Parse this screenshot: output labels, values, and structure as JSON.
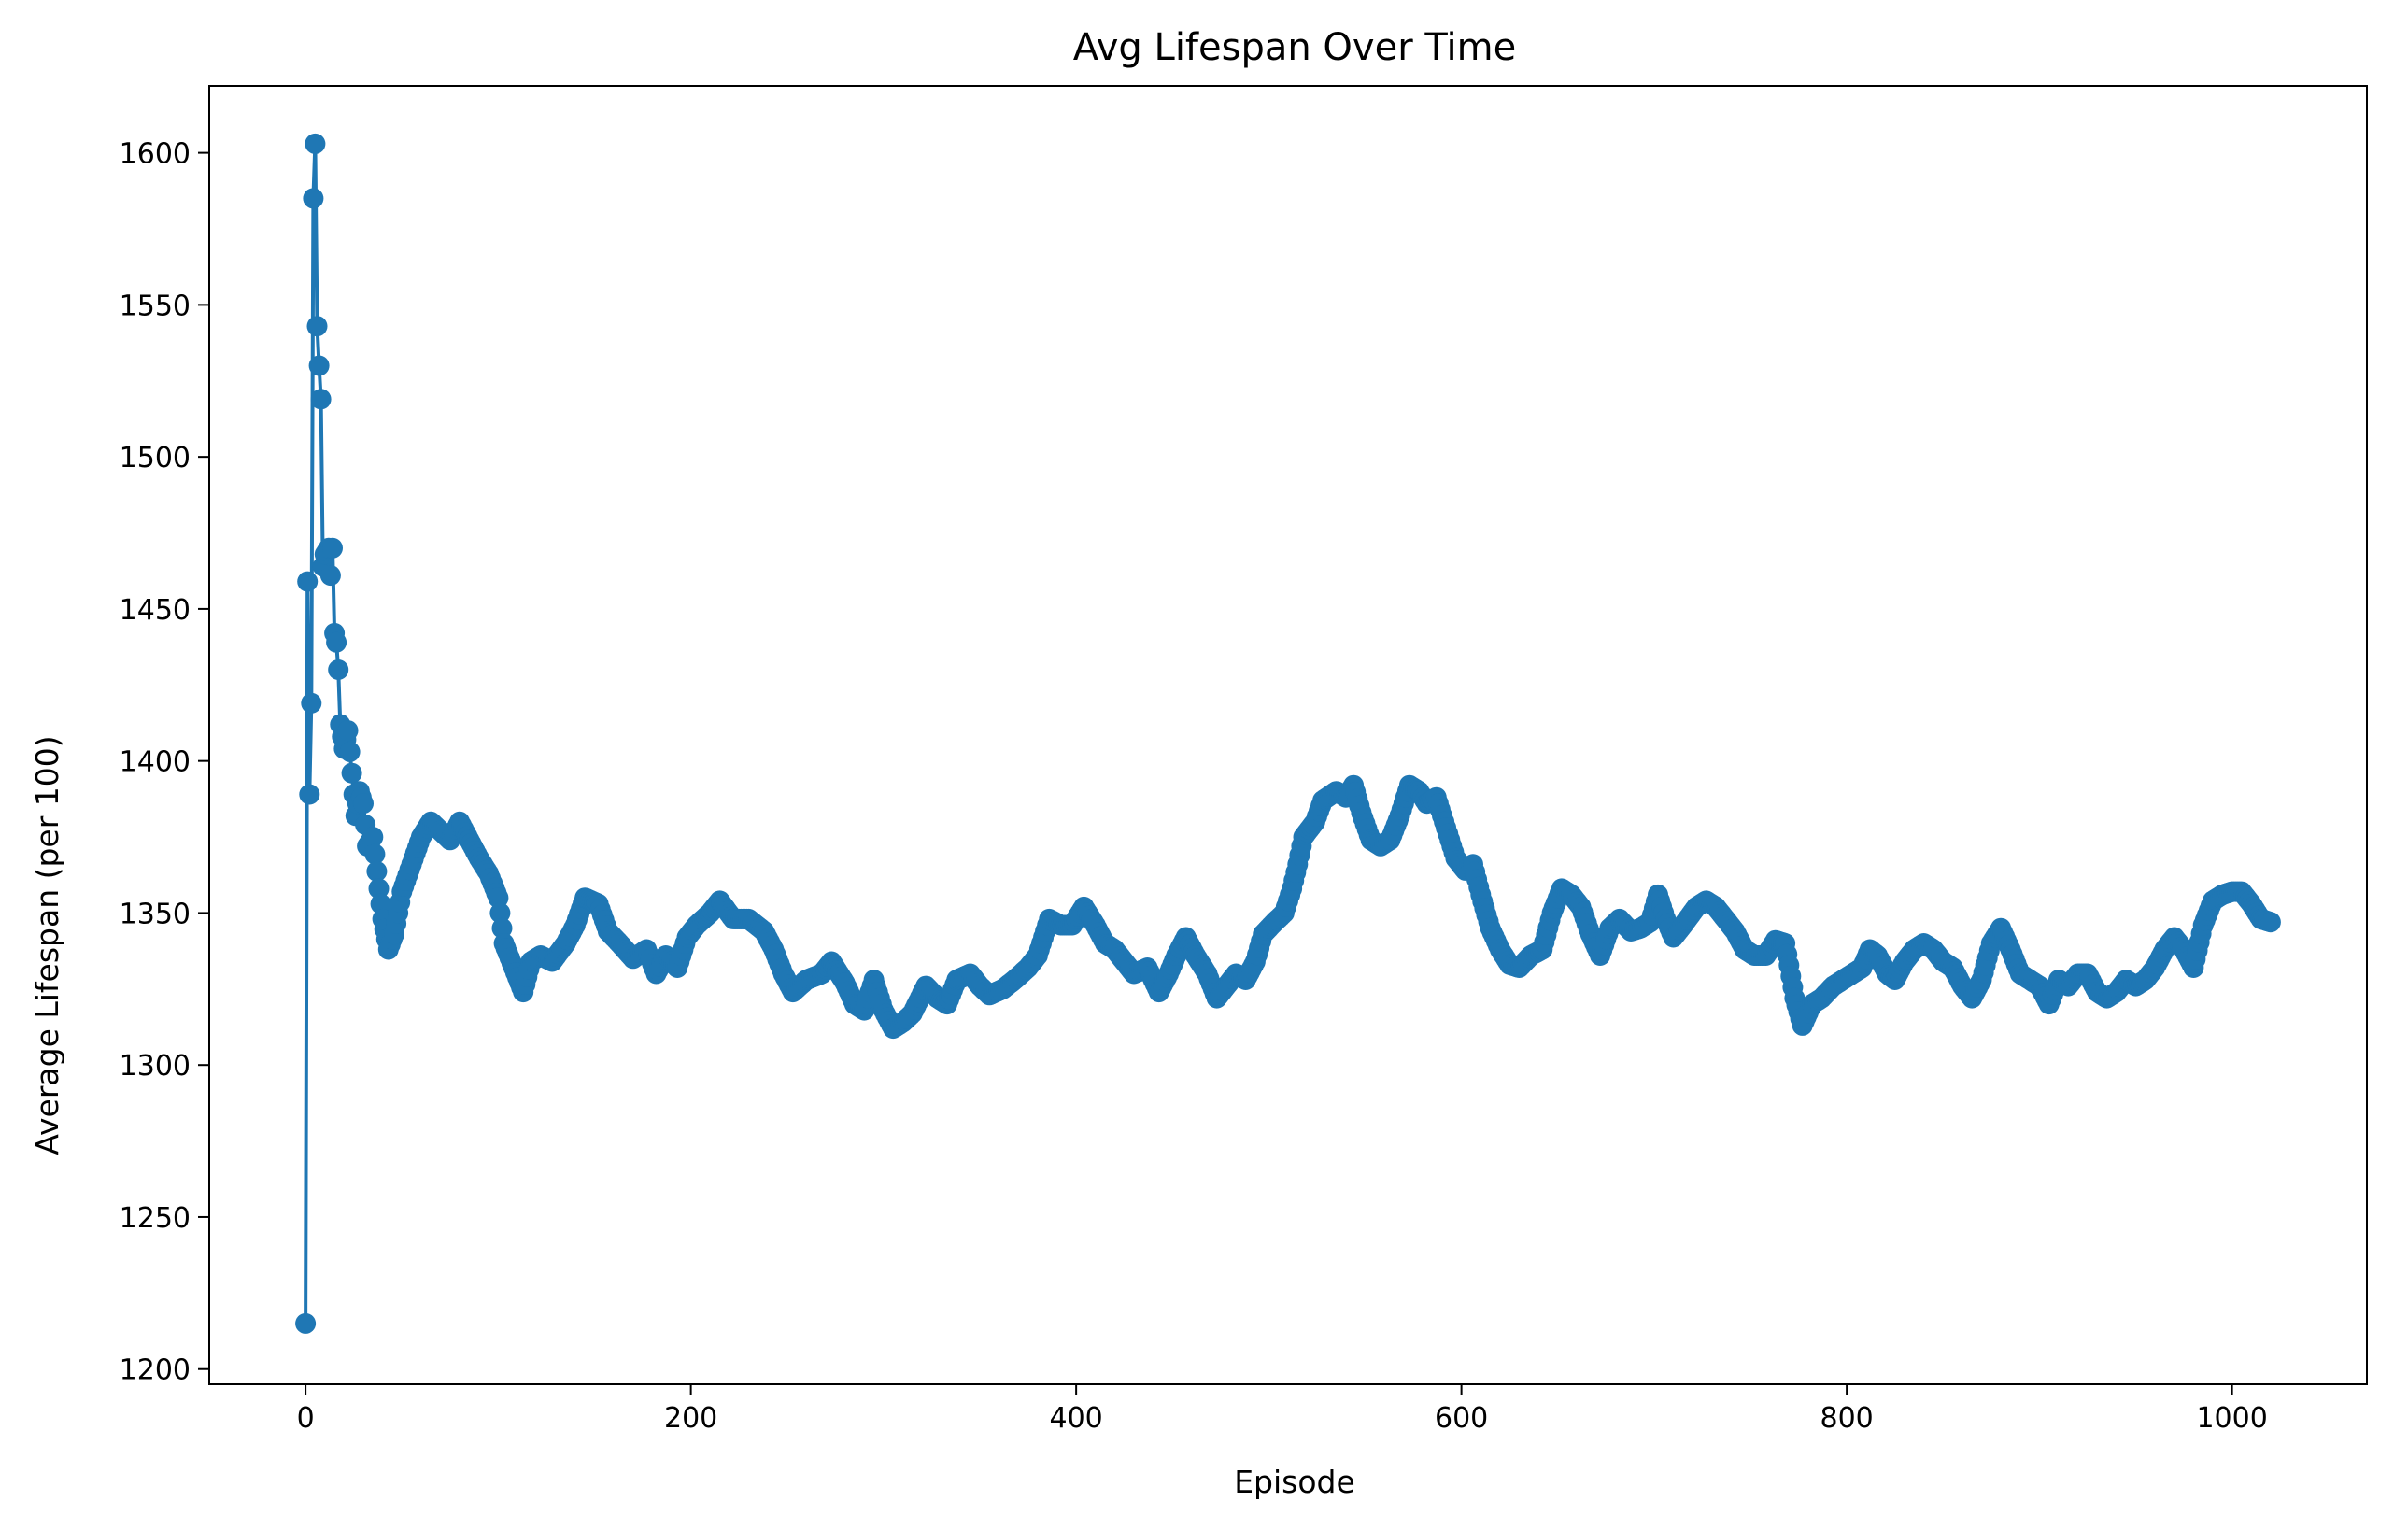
{
  "chart_data": {
    "type": "line",
    "title": "Avg Lifespan Over Time",
    "xlabel": "Episode",
    "ylabel": "Average Lifespan (per 100)",
    "xlim": [
      -50,
      1070
    ],
    "ylim": [
      1195,
      1622
    ],
    "xticks": [
      0,
      200,
      400,
      600,
      800,
      1000
    ],
    "yticks": [
      1200,
      1250,
      1300,
      1350,
      1400,
      1450,
      1500,
      1550,
      1600
    ],
    "grid": false,
    "marker": "circle",
    "color": "#1f77b4",
    "keypoints": [
      [
        0,
        1215
      ],
      [
        1,
        1459
      ],
      [
        2,
        1389
      ],
      [
        3,
        1419
      ],
      [
        4,
        1585
      ],
      [
        5,
        1603
      ],
      [
        6,
        1543
      ],
      [
        7,
        1530
      ],
      [
        8,
        1519
      ],
      [
        9,
        1464
      ],
      [
        10,
        1468
      ],
      [
        12,
        1470
      ],
      [
        13,
        1461
      ],
      [
        14,
        1470
      ],
      [
        15,
        1442
      ],
      [
        16,
        1439
      ],
      [
        17,
        1430
      ],
      [
        18,
        1412
      ],
      [
        20,
        1404
      ],
      [
        22,
        1410
      ],
      [
        24,
        1396
      ],
      [
        26,
        1382
      ],
      [
        28,
        1390
      ],
      [
        30,
        1386
      ],
      [
        32,
        1372
      ],
      [
        35,
        1375
      ],
      [
        38,
        1358
      ],
      [
        40,
        1348
      ],
      [
        43,
        1338
      ],
      [
        46,
        1343
      ],
      [
        50,
        1357
      ],
      [
        55,
        1366
      ],
      [
        60,
        1375
      ],
      [
        65,
        1380
      ],
      [
        70,
        1377
      ],
      [
        75,
        1374
      ],
      [
        80,
        1380
      ],
      [
        85,
        1374
      ],
      [
        90,
        1368
      ],
      [
        95,
        1363
      ],
      [
        100,
        1355
      ],
      [
        103,
        1340
      ],
      [
        108,
        1332
      ],
      [
        113,
        1324
      ],
      [
        117,
        1334
      ],
      [
        122,
        1336
      ],
      [
        128,
        1334
      ],
      [
        135,
        1340
      ],
      [
        140,
        1346
      ],
      [
        145,
        1355
      ],
      [
        152,
        1353
      ],
      [
        157,
        1344
      ],
      [
        163,
        1340
      ],
      [
        170,
        1335
      ],
      [
        177,
        1338
      ],
      [
        182,
        1330
      ],
      [
        187,
        1336
      ],
      [
        193,
        1332
      ],
      [
        198,
        1342
      ],
      [
        203,
        1346
      ],
      [
        210,
        1350
      ],
      [
        215,
        1354
      ],
      [
        222,
        1348
      ],
      [
        230,
        1348
      ],
      [
        238,
        1344
      ],
      [
        243,
        1338
      ],
      [
        248,
        1330
      ],
      [
        253,
        1324
      ],
      [
        260,
        1328
      ],
      [
        268,
        1330
      ],
      [
        273,
        1334
      ],
      [
        280,
        1327
      ],
      [
        285,
        1320
      ],
      [
        290,
        1318
      ],
      [
        295,
        1328
      ],
      [
        300,
        1318
      ],
      [
        305,
        1312
      ],
      [
        310,
        1314
      ],
      [
        315,
        1317
      ],
      [
        322,
        1326
      ],
      [
        328,
        1322
      ],
      [
        333,
        1320
      ],
      [
        338,
        1328
      ],
      [
        345,
        1330
      ],
      [
        350,
        1326
      ],
      [
        355,
        1323
      ],
      [
        362,
        1325
      ],
      [
        368,
        1328
      ],
      [
        375,
        1332
      ],
      [
        380,
        1336
      ],
      [
        386,
        1348
      ],
      [
        392,
        1346
      ],
      [
        398,
        1346
      ],
      [
        404,
        1352
      ],
      [
        410,
        1346
      ],
      [
        415,
        1340
      ],
      [
        420,
        1338
      ],
      [
        425,
        1334
      ],
      [
        430,
        1330
      ],
      [
        437,
        1332
      ],
      [
        443,
        1324
      ],
      [
        448,
        1330
      ],
      [
        452,
        1336
      ],
      [
        457,
        1342
      ],
      [
        462,
        1336
      ],
      [
        468,
        1330
      ],
      [
        473,
        1322
      ],
      [
        478,
        1326
      ],
      [
        483,
        1330
      ],
      [
        488,
        1328
      ],
      [
        493,
        1334
      ],
      [
        497,
        1343
      ],
      [
        503,
        1347
      ],
      [
        508,
        1350
      ],
      [
        512,
        1358
      ],
      [
        515,
        1366
      ],
      [
        518,
        1375
      ],
      [
        524,
        1380
      ],
      [
        528,
        1387
      ],
      [
        535,
        1390
      ],
      [
        540,
        1388
      ],
      [
        544,
        1392
      ],
      [
        548,
        1383
      ],
      [
        553,
        1374
      ],
      [
        558,
        1372
      ],
      [
        563,
        1374
      ],
      [
        568,
        1382
      ],
      [
        573,
        1392
      ],
      [
        578,
        1390
      ],
      [
        582,
        1386
      ],
      [
        587,
        1388
      ],
      [
        592,
        1378
      ],
      [
        597,
        1368
      ],
      [
        602,
        1364
      ],
      [
        606,
        1366
      ],
      [
        610,
        1356
      ],
      [
        615,
        1345
      ],
      [
        620,
        1338
      ],
      [
        625,
        1333
      ],
      [
        630,
        1332
      ],
      [
        636,
        1336
      ],
      [
        642,
        1338
      ],
      [
        647,
        1350
      ],
      [
        652,
        1358
      ],
      [
        657,
        1356
      ],
      [
        662,
        1352
      ],
      [
        667,
        1343
      ],
      [
        672,
        1336
      ],
      [
        677,
        1345
      ],
      [
        682,
        1348
      ],
      [
        688,
        1344
      ],
      [
        693,
        1345
      ],
      [
        698,
        1347
      ],
      [
        702,
        1356
      ],
      [
        706,
        1348
      ],
      [
        710,
        1342
      ],
      [
        715,
        1346
      ],
      [
        722,
        1352
      ],
      [
        727,
        1354
      ],
      [
        732,
        1352
      ],
      [
        737,
        1348
      ],
      [
        742,
        1344
      ],
      [
        747,
        1338
      ],
      [
        752,
        1336
      ],
      [
        758,
        1336
      ],
      [
        763,
        1341
      ],
      [
        768,
        1340
      ],
      [
        773,
        1322
      ],
      [
        777,
        1313
      ],
      [
        782,
        1320
      ],
      [
        787,
        1322
      ],
      [
        793,
        1326
      ],
      [
        798,
        1328
      ],
      [
        803,
        1330
      ],
      [
        808,
        1332
      ],
      [
        812,
        1338
      ],
      [
        816,
        1336
      ],
      [
        821,
        1330
      ],
      [
        825,
        1328
      ],
      [
        830,
        1334
      ],
      [
        835,
        1338
      ],
      [
        840,
        1340
      ],
      [
        845,
        1338
      ],
      [
        850,
        1334
      ],
      [
        855,
        1332
      ],
      [
        860,
        1326
      ],
      [
        865,
        1322
      ],
      [
        870,
        1328
      ],
      [
        875,
        1340
      ],
      [
        880,
        1345
      ],
      [
        885,
        1338
      ],
      [
        890,
        1330
      ],
      [
        895,
        1328
      ],
      [
        900,
        1326
      ],
      [
        905,
        1320
      ],
      [
        910,
        1328
      ],
      [
        915,
        1326
      ],
      [
        920,
        1330
      ],
      [
        925,
        1330
      ],
      [
        930,
        1324
      ],
      [
        935,
        1322
      ],
      [
        940,
        1324
      ],
      [
        945,
        1328
      ],
      [
        950,
        1326
      ],
      [
        955,
        1328
      ],
      [
        960,
        1332
      ],
      [
        965,
        1338
      ],
      [
        970,
        1342
      ],
      [
        975,
        1338
      ],
      [
        980,
        1332
      ],
      [
        985,
        1346
      ],
      [
        990,
        1354
      ],
      [
        995,
        1356
      ],
      [
        1000,
        1357
      ],
      [
        1005,
        1357
      ],
      [
        1010,
        1353
      ],
      [
        1015,
        1348
      ],
      [
        1020,
        1347
      ]
    ]
  }
}
